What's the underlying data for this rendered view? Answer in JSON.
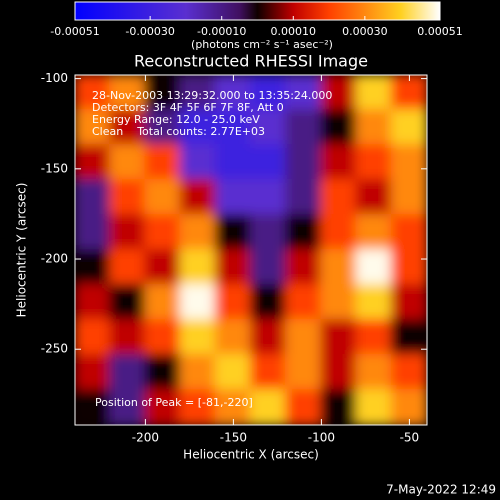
{
  "chart_data": {
    "type": "heatmap",
    "title": "Reconstructed RHESSI Image",
    "xlabel": "Heliocentric X (arcsec)",
    "ylabel": "Heliocentric Y (arcsec)",
    "colorbar_label": "(photons cm⁻² s⁻¹ asec⁻²)",
    "annotations": [
      "28-Nov-2003 13:29:32.000 to 13:35:24.000",
      "Detectors: 3F 4F 5F 6F 7F 8F, Att 0",
      "Energy Range: 12.0 - 25.0 keV",
      "Clean    Total counts: 2.77E+03"
    ],
    "peak_label": "Position of Peak = [-81,-220]",
    "footer": "7-May-2022 12:49",
    "xlim": [
      -240,
      -40
    ],
    "ylim": [
      -292,
      -98
    ],
    "xticks": [
      -200,
      -150,
      -100,
      -50
    ],
    "yticks": [
      -100,
      -150,
      -200,
      -250
    ],
    "zlim": [
      -0.00051,
      0.00051
    ],
    "zticks": [
      {
        "value": -0.00051,
        "label": "-0.00051"
      },
      {
        "value": -0.0003,
        "label": "-0.00030"
      },
      {
        "value": -0.0001,
        "label": "-0.00010"
      },
      {
        "value": 0.0001,
        "label": "0.00010"
      },
      {
        "value": 0.0003,
        "label": "0.00030"
      },
      {
        "value": 0.00051,
        "label": "0.00051"
      }
    ],
    "colorscale": [
      {
        "value": -0.00051,
        "color": "#0000ff"
      },
      {
        "value": -0.0002,
        "color": "#5a2fd0"
      },
      {
        "value": -5e-05,
        "color": "#401060"
      },
      {
        "value": 0,
        "color": "#100000"
      },
      {
        "value": 0.0001,
        "color": "#c00000"
      },
      {
        "value": 0.0002,
        "color": "#ff4000"
      },
      {
        "value": 0.0004,
        "color": "#ffd020"
      },
      {
        "value": 0.00051,
        "color": "#ffffff"
      }
    ],
    "z": [
      [
        0.0002,
        0.0003,
        0,
        -0.0001,
        -0.0002,
        -0.0003,
        -0.0002,
        0.0001,
        0.0004,
        0.0002
      ],
      [
        0.0003,
        0.0001,
        -0.0001,
        -0.0003,
        -0.0003,
        -0.0002,
        -0.0001,
        0,
        0.0003,
        0.0004
      ],
      [
        0.0001,
        0.0003,
        0.0002,
        -0.0002,
        -0.0003,
        -0.0003,
        -0.0001,
        0.0001,
        0.0002,
        0.0003
      ],
      [
        -0.0001,
        0.0002,
        0.0003,
        0.0001,
        -0.0002,
        -0.0002,
        -0.0001,
        0.0002,
        0.0001,
        0.0003
      ],
      [
        -0.0001,
        0.0001,
        0.0002,
        0.0003,
        0,
        -0.0001,
        0,
        0.0002,
        0.0003,
        0.0002
      ],
      [
        0,
        0.0002,
        0.0001,
        0.0004,
        0.0001,
        -0.0001,
        0.0001,
        0.0003,
        0.0005,
        0.0002
      ],
      [
        0.0001,
        0,
        0.0003,
        0.0005,
        0.0002,
        0,
        0.0002,
        0.0003,
        0.0004,
        0.0001
      ],
      [
        0.0002,
        0.0001,
        0.0002,
        0.0004,
        0.0003,
        0.0001,
        0.0003,
        0.0001,
        0.0002,
        0
      ],
      [
        0.0001,
        -0.0001,
        0,
        0.0003,
        0.0004,
        0.0002,
        0.0003,
        0.0001,
        0.0003,
        0.0002
      ],
      [
        0,
        -0.0001,
        0.0001,
        0.0002,
        0.0003,
        0.0004,
        0.0002,
        0,
        0.0004,
        0.0003
      ]
    ]
  }
}
